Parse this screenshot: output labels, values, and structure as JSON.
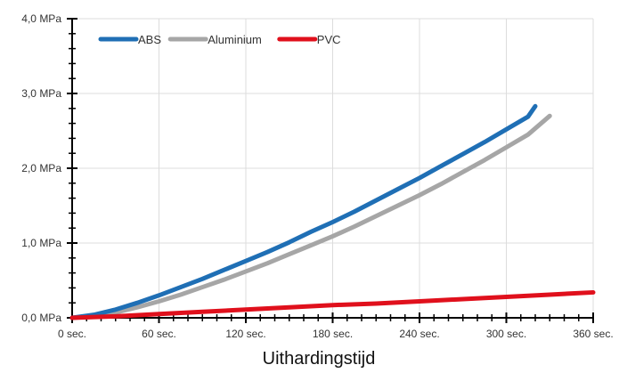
{
  "chart_data": {
    "type": "line",
    "title": "",
    "xlabel": "Uithardingstijd",
    "ylabel": "",
    "xlim": [
      0,
      360
    ],
    "ylim": [
      0,
      4.0
    ],
    "x_ticks": [
      0,
      60,
      120,
      180,
      240,
      300,
      360
    ],
    "x_tick_labels": [
      "0 sec.",
      "60 sec.",
      "120 sec.",
      "180 sec.",
      "240 sec.",
      "300 sec.",
      "360 sec."
    ],
    "y_ticks": [
      0,
      1,
      2,
      3,
      4
    ],
    "y_tick_labels": [
      "0,0 MPa",
      "1,0 MPa",
      "2,0 MPa",
      "3,0 MPa",
      "4,0 MPa"
    ],
    "grid": true,
    "legend_position": "top-left",
    "series": [
      {
        "name": "ABS",
        "color": "#1f6fb5",
        "x": [
          0,
          15,
          30,
          45,
          60,
          75,
          90,
          105,
          120,
          135,
          150,
          165,
          180,
          195,
          210,
          225,
          240,
          255,
          270,
          285,
          300,
          315,
          320
        ],
        "y": [
          0,
          0.04,
          0.11,
          0.2,
          0.3,
          0.41,
          0.52,
          0.64,
          0.76,
          0.88,
          1.01,
          1.15,
          1.28,
          1.42,
          1.57,
          1.72,
          1.87,
          2.03,
          2.19,
          2.35,
          2.52,
          2.69,
          2.83
        ]
      },
      {
        "name": "Aluminium",
        "color": "#a6a6a6",
        "x": [
          0,
          15,
          30,
          45,
          60,
          75,
          90,
          105,
          120,
          135,
          150,
          165,
          180,
          195,
          210,
          225,
          240,
          255,
          270,
          285,
          300,
          315,
          330
        ],
        "y": [
          0,
          0.02,
          0.07,
          0.14,
          0.22,
          0.31,
          0.41,
          0.51,
          0.62,
          0.73,
          0.85,
          0.97,
          1.09,
          1.22,
          1.36,
          1.5,
          1.64,
          1.79,
          1.95,
          2.11,
          2.28,
          2.45,
          2.7
        ]
      },
      {
        "name": "PVC",
        "color": "#e0101c",
        "x": [
          0,
          30,
          60,
          90,
          120,
          150,
          180,
          210,
          240,
          270,
          300,
          330,
          360
        ],
        "y": [
          0,
          0.02,
          0.05,
          0.08,
          0.11,
          0.14,
          0.17,
          0.19,
          0.22,
          0.25,
          0.28,
          0.31,
          0.34
        ]
      }
    ]
  }
}
